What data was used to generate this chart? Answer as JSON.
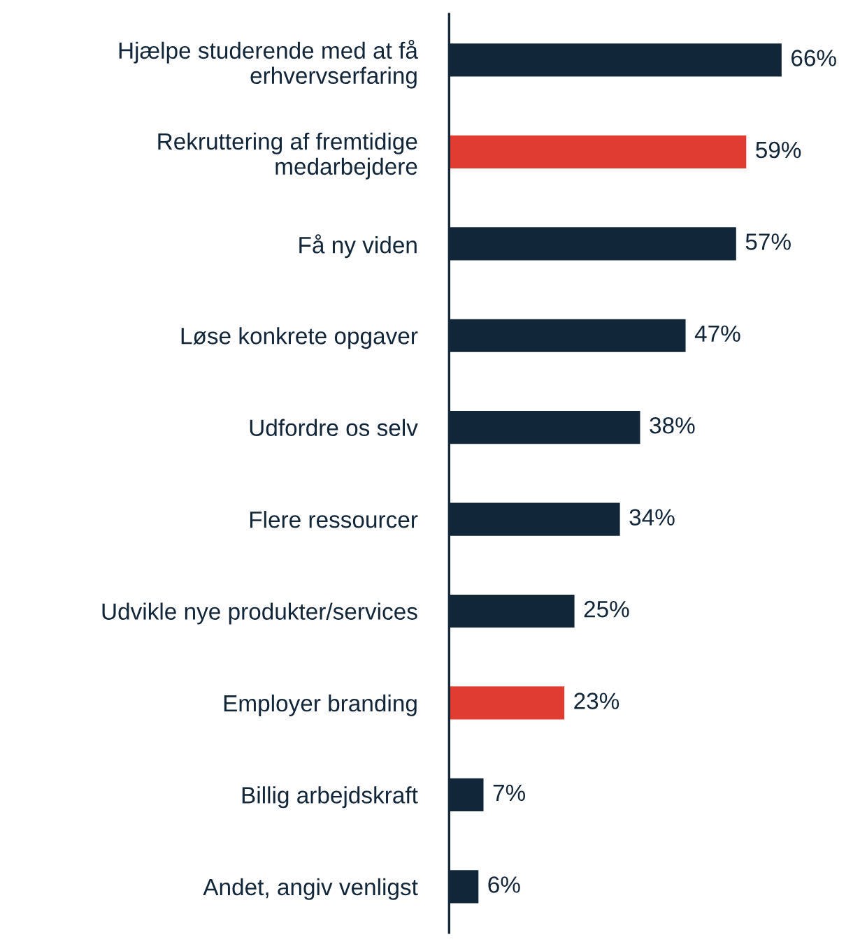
{
  "chart_data": {
    "type": "bar",
    "orientation": "horizontal",
    "categories": [
      "Hjælpe studerende med at få\nerhvervserfaring",
      "Rekruttering af fremtidige\nmedarbejdere",
      "Få ny viden",
      "Løse konkrete opgaver",
      "Udfordre os selv",
      "Flere ressourcer",
      "Udvikle nye produkter/services",
      "Employer branding",
      "Billig arbejdskraft",
      "Andet, angiv venligst"
    ],
    "values": [
      66,
      59,
      57,
      47,
      38,
      34,
      25,
      23,
      7,
      6
    ],
    "value_labels": [
      "66%",
      "59%",
      "57%",
      "47%",
      "38%",
      "34%",
      "25%",
      "23%",
      "7%",
      "6%"
    ],
    "colors": [
      "#12263a",
      "#e03c31",
      "#12263a",
      "#12263a",
      "#12263a",
      "#12263a",
      "#12263a",
      "#e03c31",
      "#12263a",
      "#12263a"
    ],
    "tick_labels": "y",
    "grid": false,
    "legend": false
  }
}
